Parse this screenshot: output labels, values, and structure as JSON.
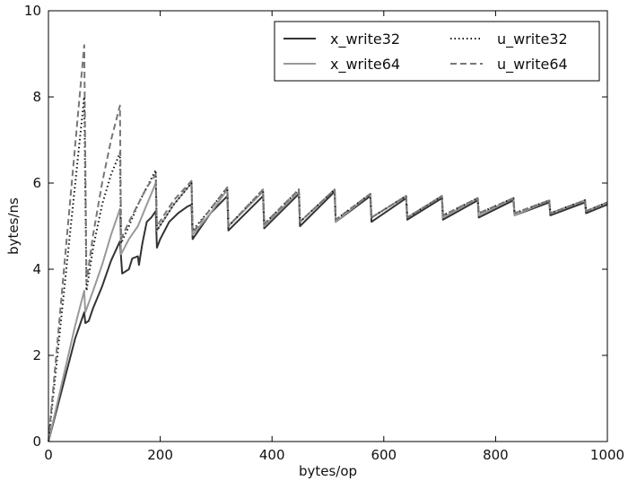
{
  "chart_data": {
    "type": "line",
    "title": "",
    "xlabel": "bytes/op",
    "ylabel": "bytes/ns",
    "xlim": [
      0,
      1000
    ],
    "ylim": [
      0,
      10
    ],
    "xticks": [
      0,
      200,
      400,
      600,
      800,
      1000
    ],
    "yticks": [
      0,
      2,
      4,
      6,
      8,
      10
    ],
    "grid": false,
    "legend": {
      "placement": "top-right",
      "columns": 2
    },
    "series": [
      {
        "name": "x_write32",
        "color": "#333333",
        "linestyle": "solid",
        "points": [
          [
            0,
            0
          ],
          [
            16,
            0.8
          ],
          [
            32,
            1.6
          ],
          [
            48,
            2.4
          ],
          [
            64,
            3.0
          ],
          [
            66,
            2.75
          ],
          [
            72,
            2.8
          ],
          [
            80,
            3.1
          ],
          [
            96,
            3.6
          ],
          [
            112,
            4.2
          ],
          [
            128,
            4.65
          ],
          [
            132,
            3.9
          ],
          [
            144,
            4.0
          ],
          [
            150,
            4.25
          ],
          [
            160,
            4.3
          ],
          [
            162,
            4.1
          ],
          [
            168,
            4.6
          ],
          [
            176,
            5.1
          ],
          [
            184,
            5.2
          ],
          [
            192,
            5.35
          ],
          [
            194,
            4.5
          ],
          [
            200,
            4.7
          ],
          [
            216,
            5.1
          ],
          [
            232,
            5.3
          ],
          [
            248,
            5.45
          ],
          [
            256,
            5.5
          ],
          [
            258,
            4.7
          ],
          [
            290,
            5.3
          ],
          [
            320,
            5.7
          ],
          [
            322,
            4.9
          ],
          [
            384,
            5.7
          ],
          [
            386,
            4.95
          ],
          [
            448,
            5.75
          ],
          [
            450,
            5.0
          ],
          [
            512,
            5.8
          ],
          [
            514,
            5.1
          ],
          [
            576,
            5.7
          ],
          [
            578,
            5.1
          ],
          [
            640,
            5.65
          ],
          [
            642,
            5.15
          ],
          [
            704,
            5.65
          ],
          [
            706,
            5.15
          ],
          [
            768,
            5.6
          ],
          [
            770,
            5.2
          ],
          [
            832,
            5.6
          ],
          [
            834,
            5.25
          ],
          [
            896,
            5.55
          ],
          [
            898,
            5.25
          ],
          [
            960,
            5.55
          ],
          [
            962,
            5.3
          ],
          [
            1000,
            5.5
          ]
        ]
      },
      {
        "name": "x_write64",
        "color": "#999999",
        "linestyle": "solid",
        "points": [
          [
            0,
            0
          ],
          [
            16,
            0.9
          ],
          [
            32,
            1.8
          ],
          [
            48,
            2.7
          ],
          [
            64,
            3.5
          ],
          [
            66,
            3.0
          ],
          [
            80,
            3.5
          ],
          [
            96,
            4.1
          ],
          [
            112,
            4.8
          ],
          [
            128,
            5.4
          ],
          [
            130,
            4.35
          ],
          [
            144,
            4.7
          ],
          [
            160,
            5.0
          ],
          [
            176,
            5.5
          ],
          [
            192,
            6.0
          ],
          [
            194,
            4.9
          ],
          [
            224,
            5.5
          ],
          [
            256,
            6.0
          ],
          [
            258,
            4.8
          ],
          [
            290,
            5.3
          ],
          [
            320,
            5.85
          ],
          [
            322,
            5.0
          ],
          [
            384,
            5.8
          ],
          [
            386,
            5.0
          ],
          [
            448,
            5.8
          ],
          [
            450,
            5.1
          ],
          [
            512,
            5.85
          ],
          [
            514,
            5.1
          ],
          [
            576,
            5.75
          ],
          [
            578,
            5.2
          ],
          [
            640,
            5.7
          ],
          [
            642,
            5.2
          ],
          [
            704,
            5.7
          ],
          [
            706,
            5.2
          ],
          [
            768,
            5.65
          ],
          [
            770,
            5.25
          ],
          [
            832,
            5.65
          ],
          [
            834,
            5.25
          ],
          [
            896,
            5.6
          ],
          [
            898,
            5.3
          ],
          [
            960,
            5.6
          ],
          [
            962,
            5.35
          ],
          [
            1000,
            5.55
          ]
        ]
      },
      {
        "name": "u_write32",
        "color": "#111111",
        "linestyle": "dotted",
        "points": [
          [
            0,
            0
          ],
          [
            16,
            2.0
          ],
          [
            32,
            4.0
          ],
          [
            48,
            6.0
          ],
          [
            64,
            8.0
          ],
          [
            68,
            3.5
          ],
          [
            80,
            4.5
          ],
          [
            96,
            5.5
          ],
          [
            112,
            6.2
          ],
          [
            128,
            6.7
          ],
          [
            130,
            4.6
          ],
          [
            144,
            5.0
          ],
          [
            160,
            5.5
          ],
          [
            176,
            5.9
          ],
          [
            192,
            6.3
          ],
          [
            194,
            4.9
          ],
          [
            224,
            5.5
          ],
          [
            256,
            6.0
          ],
          [
            258,
            4.9
          ],
          [
            290,
            5.4
          ],
          [
            320,
            5.9
          ],
          [
            322,
            5.0
          ],
          [
            384,
            5.85
          ],
          [
            386,
            5.05
          ],
          [
            448,
            5.85
          ],
          [
            450,
            5.1
          ],
          [
            512,
            5.85
          ],
          [
            514,
            5.15
          ],
          [
            576,
            5.75
          ],
          [
            578,
            5.2
          ],
          [
            640,
            5.7
          ],
          [
            642,
            5.2
          ],
          [
            704,
            5.7
          ],
          [
            706,
            5.25
          ],
          [
            768,
            5.65
          ],
          [
            770,
            5.3
          ],
          [
            832,
            5.65
          ],
          [
            834,
            5.3
          ],
          [
            896,
            5.6
          ],
          [
            898,
            5.3
          ],
          [
            960,
            5.6
          ],
          [
            962,
            5.35
          ],
          [
            1000,
            5.55
          ]
        ]
      },
      {
        "name": "u_write64",
        "color": "#777777",
        "linestyle": "dashed",
        "points": [
          [
            0,
            0
          ],
          [
            16,
            2.3
          ],
          [
            32,
            4.6
          ],
          [
            48,
            6.9
          ],
          [
            64,
            9.2
          ],
          [
            68,
            3.7
          ],
          [
            80,
            4.8
          ],
          [
            96,
            6.0
          ],
          [
            112,
            7.0
          ],
          [
            128,
            7.8
          ],
          [
            130,
            4.7
          ],
          [
            144,
            5.1
          ],
          [
            160,
            5.5
          ],
          [
            176,
            5.9
          ],
          [
            192,
            6.2
          ],
          [
            194,
            5.0
          ],
          [
            224,
            5.6
          ],
          [
            256,
            6.05
          ],
          [
            258,
            4.85
          ],
          [
            290,
            5.4
          ],
          [
            320,
            5.9
          ],
          [
            322,
            5.0
          ],
          [
            384,
            5.85
          ],
          [
            386,
            5.05
          ],
          [
            448,
            5.85
          ],
          [
            450,
            5.1
          ],
          [
            512,
            5.85
          ],
          [
            514,
            5.15
          ],
          [
            576,
            5.75
          ],
          [
            578,
            5.2
          ],
          [
            640,
            5.7
          ],
          [
            642,
            5.2
          ],
          [
            704,
            5.7
          ],
          [
            706,
            5.25
          ],
          [
            768,
            5.65
          ],
          [
            770,
            5.3
          ],
          [
            832,
            5.65
          ],
          [
            834,
            5.3
          ],
          [
            896,
            5.6
          ],
          [
            898,
            5.3
          ],
          [
            960,
            5.6
          ],
          [
            962,
            5.35
          ],
          [
            1000,
            5.55
          ]
        ]
      }
    ]
  }
}
